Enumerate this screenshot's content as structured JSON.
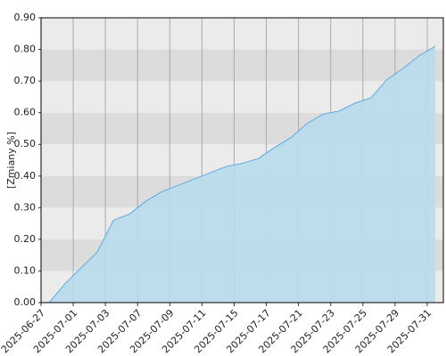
{
  "chart_data": {
    "type": "area",
    "y_label": "[Zmiany %]",
    "categories": [
      "2025-06-27",
      null,
      "2025-07-01",
      null,
      "2025-07-03",
      null,
      "2025-07-07",
      null,
      "2025-07-09",
      null,
      "2025-07-11",
      null,
      "2025-07-15",
      null,
      "2025-07-17",
      null,
      "2025-07-21",
      null,
      "2025-07-23",
      null,
      "2025-07-25",
      null,
      "2025-07-29",
      null,
      "2025-07-31"
    ],
    "values": [
      0.0,
      0.06,
      0.11,
      0.16,
      0.26,
      0.28,
      0.32,
      0.35,
      0.37,
      0.39,
      0.41,
      0.43,
      0.44,
      0.455,
      0.49,
      0.52,
      0.565,
      0.595,
      0.605,
      0.63,
      0.647,
      0.705,
      0.74,
      0.78,
      0.81
    ],
    "color": "#5aa9e6",
    "fill": "#b8dcec",
    "ylim": [
      0,
      0.9
    ],
    "yticks": [
      {
        "value": 0,
        "label": "0.00"
      },
      {
        "value": 0.1,
        "label": "0.10"
      },
      {
        "value": 0.2,
        "label": "0.20"
      },
      {
        "value": 0.3,
        "label": "0.30"
      },
      {
        "value": 0.4,
        "label": "0.40"
      },
      {
        "value": 0.5,
        "label": "0.50"
      },
      {
        "value": 0.6,
        "label": "0.60"
      },
      {
        "value": 0.7,
        "label": "0.70"
      },
      {
        "value": 0.8,
        "label": "0.80"
      },
      {
        "value": 0.9,
        "label": "0.90"
      }
    ],
    "grid": true
  }
}
